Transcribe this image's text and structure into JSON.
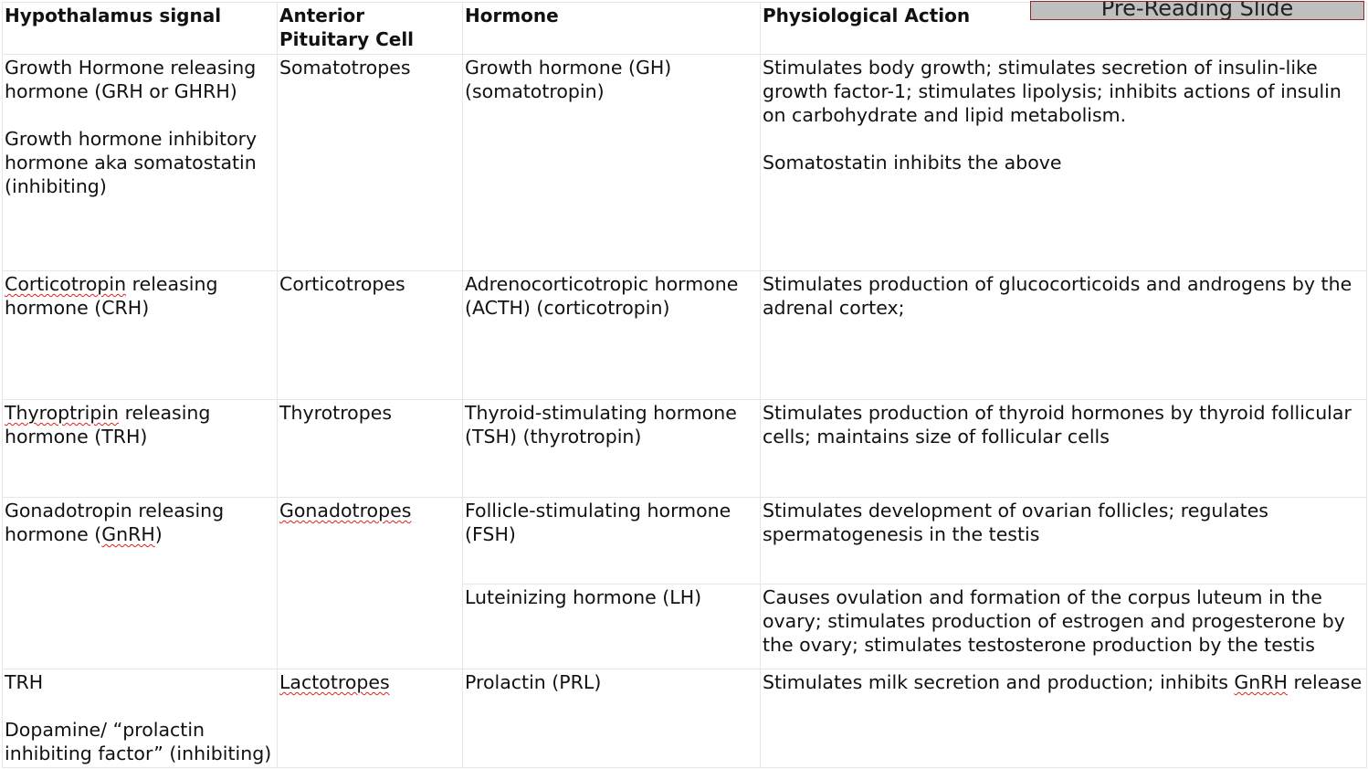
{
  "badge": {
    "label": "Pre-Reading Slide"
  },
  "headers": {
    "signal": "Hypothalamus signal",
    "cell": "Anterior Pituitary Cell",
    "hormone": "Hormone",
    "action": "Physiological Action"
  },
  "rows": {
    "gh": {
      "signal_1": "Growth Hormone releasing hormone (GRH or GHRH)",
      "signal_2": "Growth hormone inhibitory hormone aka somatostatin (inhibiting)",
      "cell": "Somatotropes",
      "hormone": "Growth hormone (GH) (somatotropin)",
      "action_1": "Stimulates body growth; stimulates secretion of insulin-like growth factor-1; stimulates lipolysis; inhibits actions of insulin on carbohydrate and lipid metabolism.",
      "action_2": "Somatostatin inhibits the above"
    },
    "acth": {
      "signal_word": "Corticotropin",
      "signal_rest": " releasing hormone (CRH)",
      "cell": "Corticotropes",
      "hormone": "Adrenocorticotropic hormone (ACTH) (corticotropin)",
      "action": "Stimulates production of glucocorticoids and androgens by the adrenal cortex;"
    },
    "tsh": {
      "signal_word": "Thyroptripin",
      "signal_rest": " releasing hormone (TRH)",
      "cell": "Thyrotropes",
      "hormone": "Thyroid-stimulating hormone (TSH) (thyrotropin)",
      "action": "Stimulates production of thyroid hormones by thyroid follicular cells; maintains size of follicular cells"
    },
    "gonad": {
      "signal_pre": "Gonadotropin releasing hormone (",
      "signal_word": "GnRH",
      "signal_post": ")",
      "cell": "Gonadotropes",
      "fsh_hormone": "Follicle-stimulating hormone (FSH)",
      "fsh_action": "Stimulates development of ovarian follicles; regulates spermatogenesis in the testis",
      "lh_hormone": "Luteinizing hormone (LH)",
      "lh_action": "Causes ovulation and formation of the corpus luteum in the ovary; stimulates production of estrogen and progesterone by the ovary; stimulates testosterone production by the testis"
    },
    "prl": {
      "signal_1": "TRH",
      "signal_2": "Dopamine/ “prolactin inhibiting factor” (inhibiting)",
      "cell": "Lactotropes",
      "hormone": "Prolactin (PRL)",
      "action_pre": "Stimulates milk secretion and production; inhibits ",
      "action_word": "GnRH",
      "action_post": " release"
    }
  }
}
